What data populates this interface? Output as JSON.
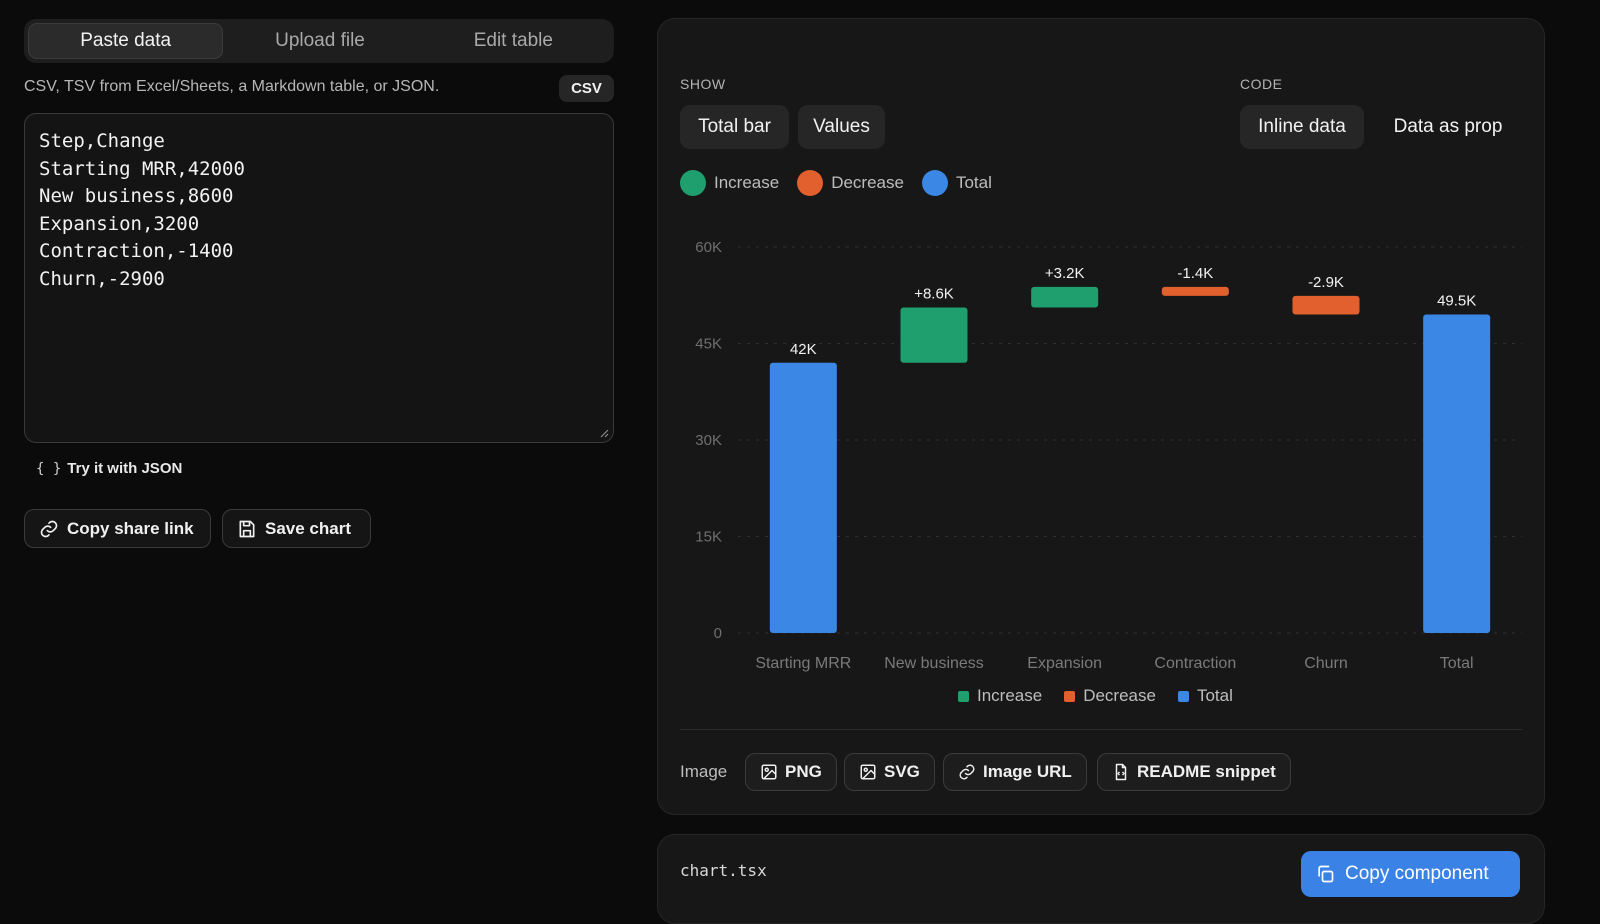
{
  "left": {
    "tabs": [
      "Paste data",
      "Upload file",
      "Edit table"
    ],
    "hint": "CSV, TSV from Excel/Sheets, a Markdown table, or JSON.",
    "format_badge": "CSV",
    "editor_text": "Step,Change\nStarting MRR,42000\nNew business,8600\nExpansion,3200\nContraction,-1400\nChurn,-2900",
    "try_json_icon": "{ }",
    "try_json": "Try it with JSON",
    "copy_share_link": "Copy share link",
    "save_chart": "Save chart"
  },
  "panel": {
    "show_label": "SHOW",
    "code_label": "CODE",
    "show_options": [
      "Total bar",
      "Values"
    ],
    "code_options": [
      "Inline data",
      "Data as prop"
    ],
    "image_label": "Image",
    "image_buttons": [
      "PNG",
      "SVG",
      "Image URL",
      "README snippet"
    ]
  },
  "code": {
    "filename": "chart.tsx",
    "copy_button": "Copy component"
  },
  "colors": {
    "increase": "#1f9e6e",
    "decrease": "#e2602d",
    "total": "#3b87e6",
    "accent": "#3b82e6"
  },
  "chart_data": {
    "type": "bar",
    "subtype": "waterfall",
    "categories": [
      "Starting MRR",
      "New business",
      "Expansion",
      "Contraction",
      "Churn",
      "Total"
    ],
    "steps": [
      {
        "category": "Starting MRR",
        "kind": "total",
        "start": 0,
        "end": 42000,
        "label": "42K"
      },
      {
        "category": "New business",
        "kind": "increase",
        "start": 42000,
        "end": 50600,
        "label": "+8.6K"
      },
      {
        "category": "Expansion",
        "kind": "increase",
        "start": 50600,
        "end": 53800,
        "label": "+3.2K"
      },
      {
        "category": "Contraction",
        "kind": "decrease",
        "start": 53800,
        "end": 52400,
        "label": "-1.4K"
      },
      {
        "category": "Churn",
        "kind": "decrease",
        "start": 52400,
        "end": 49500,
        "label": "-2.9K"
      },
      {
        "category": "Total",
        "kind": "total",
        "start": 0,
        "end": 49500,
        "label": "49.5K"
      }
    ],
    "ylim": [
      0,
      60000
    ],
    "yticks": [
      0,
      15000,
      30000,
      45000,
      60000
    ],
    "ytick_labels": [
      "0",
      "15K",
      "30K",
      "45K",
      "60K"
    ],
    "legend": [
      "Increase",
      "Decrease",
      "Total"
    ],
    "grid": true,
    "legend_position": "top-left and bottom-center"
  }
}
